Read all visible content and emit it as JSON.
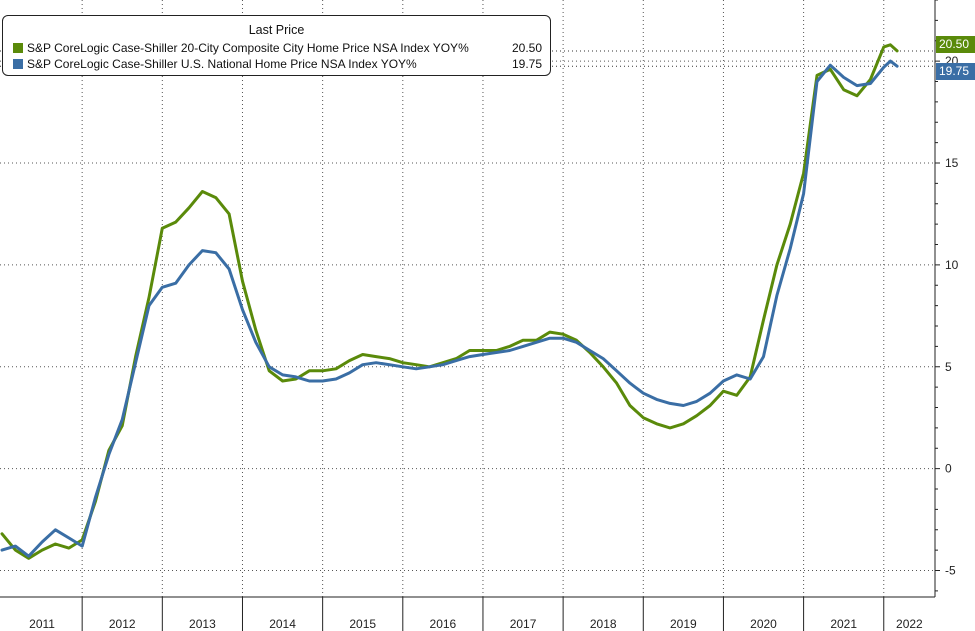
{
  "chart_data": {
    "type": "line",
    "title": "",
    "xlabel": "",
    "ylabel": "",
    "legend": {
      "title": "Last Price",
      "placement": "top-left"
    },
    "x_tick_labels": [
      "2011",
      "2012",
      "2013",
      "2014",
      "2015",
      "2016",
      "2017",
      "2018",
      "2019",
      "2020",
      "2021",
      "2022"
    ],
    "y_ticks": [
      -5,
      0,
      5,
      10,
      15,
      20
    ],
    "ylim": [
      -6.3,
      23
    ],
    "xlim": [
      "2011-01",
      "2022-03"
    ],
    "grid": true,
    "series": [
      {
        "name": "S&P CoreLogic Case-Shiller 20-City Composite City Home Price NSA Index YOY%",
        "color": "#5a8a0a",
        "last_value_label": "20.50",
        "x": [
          "2011-01",
          "2011-03",
          "2011-05",
          "2011-07",
          "2011-09",
          "2011-11",
          "2012-01",
          "2012-03",
          "2012-05",
          "2012-07",
          "2012-09",
          "2012-11",
          "2013-01",
          "2013-03",
          "2013-05",
          "2013-07",
          "2013-09",
          "2013-11",
          "2014-01",
          "2014-03",
          "2014-05",
          "2014-07",
          "2014-09",
          "2014-11",
          "2015-01",
          "2015-03",
          "2015-05",
          "2015-07",
          "2015-09",
          "2015-11",
          "2016-01",
          "2016-03",
          "2016-05",
          "2016-07",
          "2016-09",
          "2016-11",
          "2017-01",
          "2017-03",
          "2017-05",
          "2017-07",
          "2017-09",
          "2017-11",
          "2018-01",
          "2018-03",
          "2018-05",
          "2018-07",
          "2018-09",
          "2018-11",
          "2019-01",
          "2019-03",
          "2019-05",
          "2019-07",
          "2019-09",
          "2019-11",
          "2020-01",
          "2020-03",
          "2020-05",
          "2020-07",
          "2020-09",
          "2020-11",
          "2021-01",
          "2021-03",
          "2021-05",
          "2021-07",
          "2021-09",
          "2021-11",
          "2022-01",
          "2022-02",
          "2022-03"
        ],
        "values": [
          -3.2,
          -4.0,
          -4.4,
          -4.0,
          -3.7,
          -3.9,
          -3.5,
          -1.6,
          0.9,
          2.1,
          5.5,
          8.4,
          11.8,
          12.1,
          12.8,
          13.6,
          13.3,
          12.5,
          9.2,
          6.8,
          4.8,
          4.3,
          4.4,
          4.8,
          4.8,
          4.9,
          5.3,
          5.6,
          5.5,
          5.4,
          5.2,
          5.1,
          5.0,
          5.2,
          5.4,
          5.8,
          5.8,
          5.8,
          6.0,
          6.3,
          6.3,
          6.7,
          6.6,
          6.3,
          5.7,
          5.0,
          4.2,
          3.1,
          2.5,
          2.2,
          2.0,
          2.2,
          2.6,
          3.1,
          3.8,
          3.6,
          4.5,
          7.3,
          10.0,
          12.0,
          14.5,
          19.3,
          19.6,
          18.6,
          18.3,
          19.1,
          20.7,
          20.8,
          20.5
        ]
      },
      {
        "name": "S&P CoreLogic Case-Shiller U.S. National Home Price NSA Index YOY%",
        "color": "#3a6ea5",
        "last_value_label": "19.75",
        "x": [
          "2011-01",
          "2011-03",
          "2011-05",
          "2011-07",
          "2011-09",
          "2011-11",
          "2012-01",
          "2012-03",
          "2012-05",
          "2012-07",
          "2012-09",
          "2012-11",
          "2013-01",
          "2013-03",
          "2013-05",
          "2013-07",
          "2013-09",
          "2013-11",
          "2014-01",
          "2014-03",
          "2014-05",
          "2014-07",
          "2014-09",
          "2014-11",
          "2015-01",
          "2015-03",
          "2015-05",
          "2015-07",
          "2015-09",
          "2015-11",
          "2016-01",
          "2016-03",
          "2016-05",
          "2016-07",
          "2016-09",
          "2016-11",
          "2017-01",
          "2017-03",
          "2017-05",
          "2017-07",
          "2017-09",
          "2017-11",
          "2018-01",
          "2018-03",
          "2018-05",
          "2018-07",
          "2018-09",
          "2018-11",
          "2019-01",
          "2019-03",
          "2019-05",
          "2019-07",
          "2019-09",
          "2019-11",
          "2020-01",
          "2020-03",
          "2020-05",
          "2020-07",
          "2020-09",
          "2020-11",
          "2021-01",
          "2021-03",
          "2021-05",
          "2021-07",
          "2021-09",
          "2021-11",
          "2022-01",
          "2022-02",
          "2022-03"
        ],
        "values": [
          -4.0,
          -3.8,
          -4.3,
          -3.6,
          -3.0,
          -3.4,
          -3.8,
          -1.4,
          0.7,
          2.4,
          5.2,
          8.0,
          8.9,
          9.1,
          10.0,
          10.7,
          10.6,
          9.8,
          7.8,
          6.2,
          5.0,
          4.6,
          4.5,
          4.3,
          4.3,
          4.4,
          4.7,
          5.1,
          5.2,
          5.1,
          5.0,
          4.9,
          5.0,
          5.1,
          5.3,
          5.5,
          5.6,
          5.7,
          5.8,
          6.0,
          6.2,
          6.4,
          6.4,
          6.2,
          5.8,
          5.4,
          4.8,
          4.2,
          3.7,
          3.4,
          3.2,
          3.1,
          3.3,
          3.7,
          4.3,
          4.6,
          4.4,
          5.5,
          8.5,
          10.8,
          13.5,
          19.0,
          19.8,
          19.2,
          18.8,
          18.9,
          19.7,
          20.0,
          19.75
        ]
      }
    ]
  }
}
